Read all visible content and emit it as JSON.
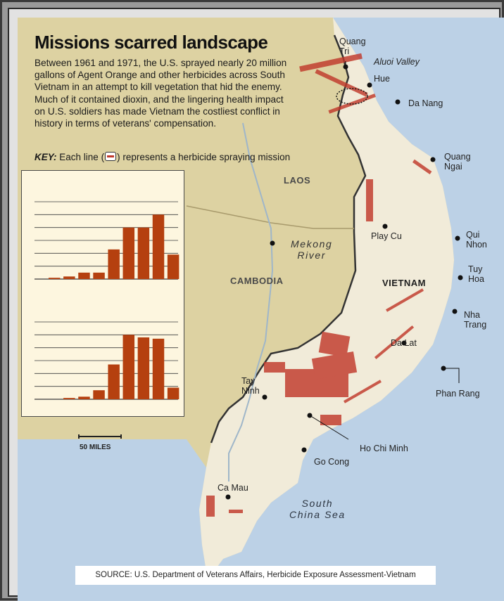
{
  "title": "Missions scarred landscape",
  "intro": "Between 1961 and 1971, the U.S. sprayed nearly 20 million gallons of Agent Orange and other herbicides across South Vietnam in an attempt to kill vegetation that hid the enemy. Much of it contained dioxin, and the lingering health impact on U.S. soldiers has made Vietnam the costliest conflict in history in terms of veterans' compensation.",
  "key": {
    "label": "KEY:",
    "text_before": "Each line (",
    "text_after": ") represents a herbicide spraying mission",
    "swatch_color": "#c0392b"
  },
  "chart_data": [
    {
      "type": "bar",
      "categories": [
        "",
        "",
        "",
        "",
        "",
        "",
        "",
        "",
        ""
      ],
      "values": [
        1,
        2,
        5,
        5,
        23,
        40,
        40,
        50,
        19
      ],
      "ylim": [
        0,
        60
      ],
      "grid": true,
      "bar_color": "#b5400f"
    },
    {
      "type": "bar",
      "categories": [
        "",
        "",
        "",
        "",
        "",
        "",
        "",
        "",
        ""
      ],
      "values": [
        0,
        1,
        2,
        7,
        27,
        50,
        48,
        47,
        9
      ],
      "ylim": [
        0,
        60
      ],
      "grid": true,
      "bar_color": "#b5400f"
    }
  ],
  "map": {
    "countries": [
      "LAOS",
      "CAMBODIA",
      "VIETNAM"
    ],
    "water": {
      "sea": [
        "South",
        "China Sea"
      ],
      "river": [
        "Mekong",
        "River"
      ]
    },
    "region_label": "Aluoi Valley",
    "cities": [
      "Quang Tri",
      "Hue",
      "Da Nang",
      "Quang Ngai",
      "Play Cu",
      "Qui Nhon",
      "Tuy Hoa",
      "Nha Trang",
      "Da Lat",
      "Phan Rang",
      "Tay Ninh",
      "Ho Chi Minh",
      "Go Cong",
      "Ca Mau"
    ],
    "city_lines": {
      "quang_tri": [
        "Quang",
        "Tri"
      ],
      "quang_ngai": [
        "Quang",
        "Ngai"
      ],
      "qui_nhon": [
        "Qui",
        "Nhon"
      ],
      "tuy_hoa": [
        "Tuy",
        "Hoa"
      ],
      "nha_trang": [
        "Nha",
        "Trang"
      ],
      "tay_ninh": [
        "Tay",
        "Ninh"
      ]
    },
    "colors": {
      "land": "#ddd2a2",
      "vietnam_land": "#f1ebd9",
      "sea": "#bcd1e6",
      "spray": "#c0392b",
      "border": "#333333"
    }
  },
  "scale": {
    "label": "50 MILES"
  },
  "source": "SOURCE: U.S. Department of Veterans Affairs, Herbicide Exposure Assessment-Vietnam"
}
